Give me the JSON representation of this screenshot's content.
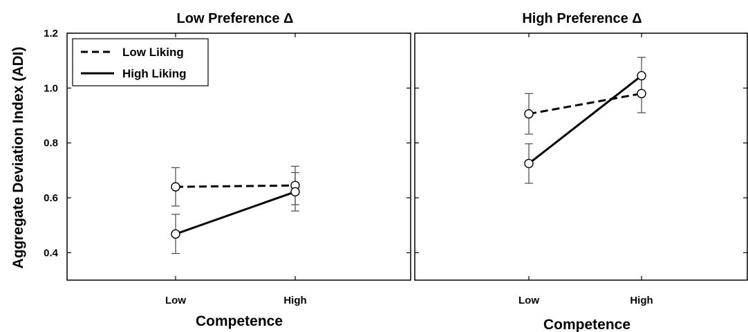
{
  "chart_data": {
    "type": "line",
    "ylabel": "Aggregate Deviation Index (ADI)",
    "ylim": [
      0.3,
      1.2
    ],
    "yticks": [
      "0.4",
      "0.6",
      "0.8",
      "1.0",
      "1.2"
    ],
    "legend": {
      "placement": "top-left of first panel",
      "entries": [
        "Low Liking",
        "High Liking"
      ]
    },
    "panels": [
      {
        "title": "Low Preference Δ",
        "xlabel": "Competence",
        "categories": [
          "Low",
          "High"
        ],
        "series": [
          {
            "name": "Low Liking",
            "style": "dashed",
            "values": [
              0.64,
              0.645
            ],
            "err_low": [
              0.57,
              0.575
            ],
            "err_high": [
              0.71,
              0.715
            ]
          },
          {
            "name": "High Liking",
            "style": "solid",
            "values": [
              0.468,
              0.622
            ],
            "err_low": [
              0.397,
              0.552
            ],
            "err_high": [
              0.54,
              0.692
            ]
          }
        ]
      },
      {
        "title": "High Preference Δ",
        "xlabel": "Competence",
        "categories": [
          "Low",
          "High"
        ],
        "series": [
          {
            "name": "Low Liking",
            "style": "dashed",
            "values": [
              0.906,
              0.98
            ],
            "err_low": [
              0.832,
              0.91
            ],
            "err_high": [
              0.98,
              1.05
            ]
          },
          {
            "name": "High Liking",
            "style": "solid",
            "values": [
              0.725,
              1.045
            ],
            "err_low": [
              0.653,
              0.978
            ],
            "err_high": [
              0.797,
              1.112
            ]
          }
        ]
      }
    ]
  }
}
